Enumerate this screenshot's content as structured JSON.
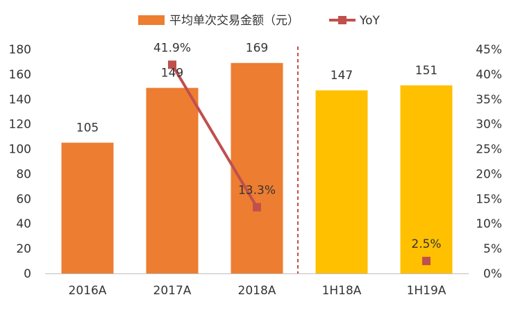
{
  "chart_data": {
    "type": "bar",
    "categories": [
      "2016A",
      "2017A",
      "2018A",
      "1H18A",
      "1H19A"
    ],
    "series": [
      {
        "name": "平均单次交易金额（元）",
        "kind": "bar",
        "axis": "left",
        "values": [
          105,
          149,
          169,
          147,
          151
        ],
        "colors": [
          "#ED7D31",
          "#ED7D31",
          "#ED7D31",
          "#FFC000",
          "#FFC000"
        ],
        "labels": [
          "105",
          "149",
          "169",
          "147",
          "151"
        ]
      },
      {
        "name": "YoY",
        "kind": "line",
        "axis": "right",
        "values": [
          null,
          41.9,
          13.3,
          null,
          2.5
        ],
        "labels": [
          "",
          "41.9%",
          "13.3%",
          "",
          "2.5%"
        ],
        "color": "#C0504D"
      }
    ],
    "y_left": {
      "min": 0,
      "max": 180,
      "step": 20,
      "ticks": [
        "0",
        "20",
        "40",
        "60",
        "80",
        "100",
        "120",
        "140",
        "160",
        "180"
      ]
    },
    "y_right": {
      "min": 0,
      "max": 45,
      "step": 5,
      "ticks": [
        "0%",
        "5%",
        "10%",
        "15%",
        "20%",
        "25%",
        "30%",
        "35%",
        "40%",
        "45%"
      ]
    },
    "separator": {
      "between": [
        "2018A",
        "1H18A"
      ],
      "style": "dashed",
      "color": "#C0504D"
    },
    "legend_position": "top",
    "grid": false,
    "title": "",
    "xlabel": "",
    "ylabel": ""
  }
}
